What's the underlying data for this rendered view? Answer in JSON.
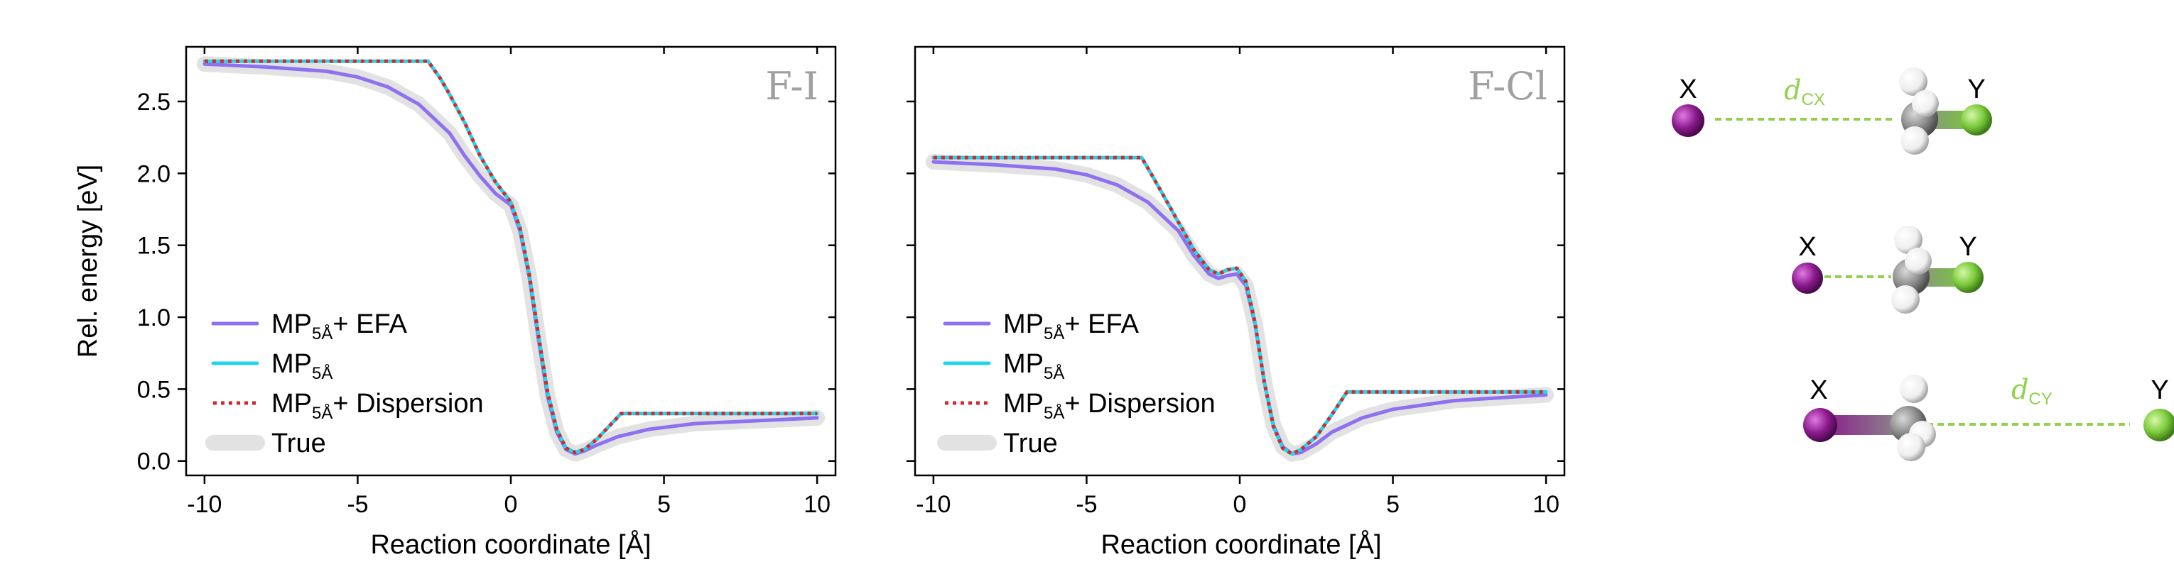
{
  "colors": {
    "efa": "#8e70f0",
    "mp": "#22d3ef",
    "dispersion": "#d42a2a",
    "true": "#e2e2e2",
    "panel_title": "#a0a0a0",
    "atom_x": "#8a1a8c",
    "atom_y": "#79c93a",
    "atom_c": "#8c8c8c",
    "atom_h": "#eeeeee",
    "distance": "#8fd14a"
  },
  "legend": {
    "items": [
      {
        "key": "efa",
        "base": "MP",
        "sub": "5Å",
        "suffix": "+ EFA"
      },
      {
        "key": "mp",
        "base": "MP",
        "sub": "5Å",
        "suffix": ""
      },
      {
        "key": "dispersion",
        "base": "MP",
        "sub": "5Å",
        "suffix": "+ Dispersion"
      },
      {
        "key": "true",
        "base": "True",
        "sub": "",
        "suffix": ""
      }
    ]
  },
  "chart_data": [
    {
      "type": "line",
      "title": "F-I",
      "xlabel": "Reaction coordinate [Å]",
      "ylabel": "Rel. energy [eV]",
      "xlim": [
        -10.6,
        10.6
      ],
      "ylim": [
        -0.1,
        2.88
      ],
      "xticks": [
        -10,
        -5,
        0,
        5,
        10
      ],
      "xtick_labels": [
        "-10",
        "-5",
        "0",
        "5",
        "10"
      ],
      "yticks": [
        0.0,
        0.5,
        1.0,
        1.5,
        2.0,
        2.5
      ],
      "ytick_labels": [
        "0.0",
        "0.5",
        "1.0",
        "1.5",
        "2.0",
        "2.5"
      ],
      "series": [
        {
          "name": "True",
          "key": "true",
          "x": [
            -10,
            -8,
            -6,
            -5,
            -4,
            -3,
            -2,
            -1.5,
            -1,
            -0.5,
            0,
            0.3,
            0.6,
            0.9,
            1.2,
            1.5,
            1.8,
            2.1,
            2.4,
            2.8,
            3.5,
            4.5,
            6,
            8,
            10
          ],
          "y": [
            2.76,
            2.74,
            2.71,
            2.67,
            2.6,
            2.48,
            2.28,
            2.12,
            1.98,
            1.86,
            1.78,
            1.6,
            1.28,
            0.85,
            0.45,
            0.2,
            0.08,
            0.05,
            0.07,
            0.11,
            0.17,
            0.22,
            0.26,
            0.28,
            0.3
          ]
        },
        {
          "name": "MP5Å + EFA",
          "key": "efa",
          "x": [
            -10,
            -8,
            -6,
            -5,
            -4,
            -3,
            -2,
            -1.5,
            -1,
            -0.5,
            0,
            0.3,
            0.6,
            0.9,
            1.2,
            1.5,
            1.8,
            2.1,
            2.4,
            2.8,
            3.5,
            4.5,
            6,
            8,
            10
          ],
          "y": [
            2.76,
            2.74,
            2.71,
            2.67,
            2.6,
            2.48,
            2.28,
            2.12,
            1.98,
            1.86,
            1.78,
            1.6,
            1.28,
            0.85,
            0.45,
            0.2,
            0.08,
            0.05,
            0.07,
            0.11,
            0.17,
            0.22,
            0.26,
            0.28,
            0.3
          ]
        },
        {
          "name": "MP5Å",
          "key": "mp",
          "x": [
            -10,
            -2.7,
            -2.3,
            -2,
            -1.5,
            -1,
            -0.5,
            0,
            0.3,
            0.6,
            0.9,
            1.2,
            1.5,
            1.8,
            2.1,
            2.4,
            2.8,
            3.2,
            3.6,
            4.5,
            6,
            8,
            10
          ],
          "y": [
            2.78,
            2.78,
            2.66,
            2.55,
            2.35,
            2.12,
            1.94,
            1.8,
            1.62,
            1.3,
            0.88,
            0.48,
            0.22,
            0.09,
            0.06,
            0.08,
            0.15,
            0.24,
            0.33,
            0.33,
            0.33,
            0.33,
            0.33
          ]
        },
        {
          "name": "MP5Å + Dispersion",
          "key": "dispersion",
          "x": [
            -10,
            -2.7,
            -2.3,
            -2,
            -1.5,
            -1,
            -0.5,
            0,
            0.3,
            0.6,
            0.9,
            1.2,
            1.5,
            1.8,
            2.1,
            2.4,
            2.8,
            3.2,
            3.6,
            4.5,
            6,
            8,
            10
          ],
          "y": [
            2.78,
            2.78,
            2.66,
            2.55,
            2.35,
            2.12,
            1.94,
            1.8,
            1.62,
            1.3,
            0.88,
            0.48,
            0.22,
            0.09,
            0.06,
            0.08,
            0.15,
            0.24,
            0.33,
            0.33,
            0.33,
            0.33,
            0.33
          ]
        }
      ]
    },
    {
      "type": "line",
      "title": "F-Cl",
      "xlabel": "Reaction coordinate [Å]",
      "ylabel": "",
      "xlim": [
        -10.6,
        10.6
      ],
      "ylim": [
        -0.1,
        2.88
      ],
      "xticks": [
        -10,
        -5,
        0,
        5,
        10
      ],
      "xtick_labels": [
        "-10",
        "-5",
        "0",
        "5",
        "10"
      ],
      "yticks": [
        0.0,
        0.5,
        1.0,
        1.5,
        2.0,
        2.5
      ],
      "ytick_labels": [
        "",
        "",
        "",
        "",
        "",
        ""
      ],
      "series": [
        {
          "name": "True",
          "key": "true",
          "x": [
            -10,
            -8,
            -6,
            -5,
            -4,
            -3,
            -2,
            -1.5,
            -1,
            -0.7,
            -0.4,
            -0.1,
            0.2,
            0.5,
            0.8,
            1.1,
            1.4,
            1.7,
            2.0,
            2.5,
            3,
            4,
            5,
            7,
            10
          ],
          "y": [
            2.08,
            2.06,
            2.03,
            1.99,
            1.92,
            1.8,
            1.6,
            1.43,
            1.3,
            1.27,
            1.29,
            1.3,
            1.22,
            0.95,
            0.55,
            0.25,
            0.1,
            0.05,
            0.06,
            0.12,
            0.2,
            0.3,
            0.36,
            0.42,
            0.46
          ]
        },
        {
          "name": "MP5Å + EFA",
          "key": "efa",
          "x": [
            -10,
            -8,
            -6,
            -5,
            -4,
            -3,
            -2,
            -1.5,
            -1,
            -0.7,
            -0.4,
            -0.1,
            0.2,
            0.5,
            0.8,
            1.1,
            1.4,
            1.7,
            2.0,
            2.5,
            3,
            4,
            5,
            7,
            10
          ],
          "y": [
            2.08,
            2.06,
            2.03,
            1.99,
            1.92,
            1.8,
            1.6,
            1.43,
            1.3,
            1.27,
            1.29,
            1.3,
            1.22,
            0.95,
            0.55,
            0.25,
            0.1,
            0.05,
            0.06,
            0.12,
            0.2,
            0.3,
            0.36,
            0.42,
            0.46
          ]
        },
        {
          "name": "MP5Å",
          "key": "mp",
          "x": [
            -10,
            -3.2,
            -2.9,
            -2.5,
            -2,
            -1.5,
            -1,
            -0.7,
            -0.4,
            -0.1,
            0.2,
            0.5,
            0.8,
            1.1,
            1.4,
            1.7,
            2.0,
            2.5,
            3.0,
            3.5,
            4,
            6,
            8,
            10
          ],
          "y": [
            2.11,
            2.11,
            2.0,
            1.85,
            1.66,
            1.47,
            1.33,
            1.3,
            1.33,
            1.34,
            1.25,
            0.96,
            0.55,
            0.24,
            0.09,
            0.05,
            0.08,
            0.17,
            0.32,
            0.48,
            0.48,
            0.48,
            0.48,
            0.48
          ]
        },
        {
          "name": "MP5Å + Dispersion",
          "key": "dispersion",
          "x": [
            -10,
            -3.2,
            -2.9,
            -2.5,
            -2,
            -1.5,
            -1,
            -0.7,
            -0.4,
            -0.1,
            0.2,
            0.5,
            0.8,
            1.1,
            1.4,
            1.7,
            2.0,
            2.5,
            3.0,
            3.5,
            4,
            6,
            8,
            10
          ],
          "y": [
            2.11,
            2.11,
            2.0,
            1.85,
            1.66,
            1.47,
            1.33,
            1.3,
            1.33,
            1.34,
            1.25,
            0.96,
            0.55,
            0.24,
            0.09,
            0.05,
            0.08,
            0.17,
            0.32,
            0.48,
            0.48,
            0.48,
            0.48,
            0.48
          ]
        }
      ]
    }
  ],
  "molecules": {
    "x_label": "X",
    "y_label": "Y",
    "d_cx": {
      "base": "d",
      "sub": "CX"
    },
    "d_cy": {
      "base": "d",
      "sub": "CY"
    }
  }
}
